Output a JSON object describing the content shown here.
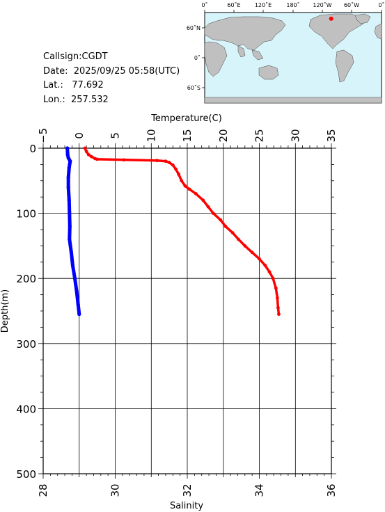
{
  "info": {
    "callsign": "Callsign:CGDT",
    "date_label": "Date:",
    "date_value": "2025/09/25 05:58(UTC)",
    "lat_label": "Lat.:",
    "lat_value": "77.692",
    "lon_label": "Lon.:",
    "lon_value": "257.532"
  },
  "map": {
    "top_labels": [
      "0˚",
      "60˚E",
      "120˚E",
      "180˚",
      "120˚W",
      "60˚W",
      "0˚"
    ],
    "left_labels": [
      "60˚N",
      "0˚",
      "60˚S"
    ],
    "ocean_color": "#d8f4fb",
    "land_color": "#c0c0c0",
    "marker_color": "#ff0000",
    "marker_lon": 257.532,
    "marker_lat": 77.692
  },
  "chart_data": {
    "type": "line",
    "ylabel": "Depth(m)",
    "ylim": [
      0,
      500
    ],
    "y_ticks": [
      "0",
      "100",
      "200",
      "300",
      "400",
      "500"
    ],
    "temperature_axis": {
      "label": "Temperature(C)",
      "range": [
        -5,
        35
      ],
      "ticks": [
        "−5",
        "0",
        "5",
        "10",
        "15",
        "20",
        "25",
        "30",
        "35"
      ]
    },
    "salinity_axis": {
      "label": "Salinity",
      "range": [
        28,
        36
      ],
      "ticks": [
        "28",
        "30",
        "32",
        "34",
        "36"
      ]
    },
    "grid": true,
    "series": [
      {
        "axis": "salinity",
        "color": "#0000ff",
        "points": [
          [
            28.67,
            0
          ],
          [
            28.68,
            10
          ],
          [
            28.7,
            15
          ],
          [
            28.75,
            20
          ],
          [
            28.72,
            30
          ],
          [
            28.7,
            45
          ],
          [
            28.7,
            60
          ],
          [
            28.72,
            80
          ],
          [
            28.73,
            100
          ],
          [
            28.74,
            120
          ],
          [
            28.73,
            140
          ],
          [
            28.78,
            160
          ],
          [
            28.82,
            180
          ],
          [
            28.88,
            200
          ],
          [
            28.93,
            220
          ],
          [
            28.97,
            240
          ],
          [
            29.0,
            255
          ]
        ]
      },
      {
        "axis": "temperature",
        "color": "#ff0000",
        "points": [
          [
            0.8,
            0
          ],
          [
            1.0,
            5
          ],
          [
            1.3,
            10
          ],
          [
            1.7,
            13
          ],
          [
            2.2,
            16
          ],
          [
            2.5,
            17
          ],
          [
            6.2,
            18
          ],
          [
            10.8,
            19
          ],
          [
            12.0,
            20
          ],
          [
            12.5,
            22
          ],
          [
            13.0,
            26
          ],
          [
            13.4,
            32
          ],
          [
            13.8,
            40
          ],
          [
            14.2,
            50
          ],
          [
            14.7,
            58
          ],
          [
            15.3,
            63
          ],
          [
            16.2,
            70
          ],
          [
            17.2,
            80
          ],
          [
            17.9,
            90
          ],
          [
            18.6,
            100
          ],
          [
            19.6,
            110
          ],
          [
            20.3,
            120
          ],
          [
            21.3,
            130
          ],
          [
            22.1,
            140
          ],
          [
            23.0,
            150
          ],
          [
            24.0,
            160
          ],
          [
            25.0,
            170
          ],
          [
            25.8,
            180
          ],
          [
            26.4,
            190
          ],
          [
            26.9,
            200
          ],
          [
            27.3,
            215
          ],
          [
            27.5,
            230
          ],
          [
            27.6,
            245
          ],
          [
            27.7,
            255
          ]
        ]
      }
    ]
  }
}
